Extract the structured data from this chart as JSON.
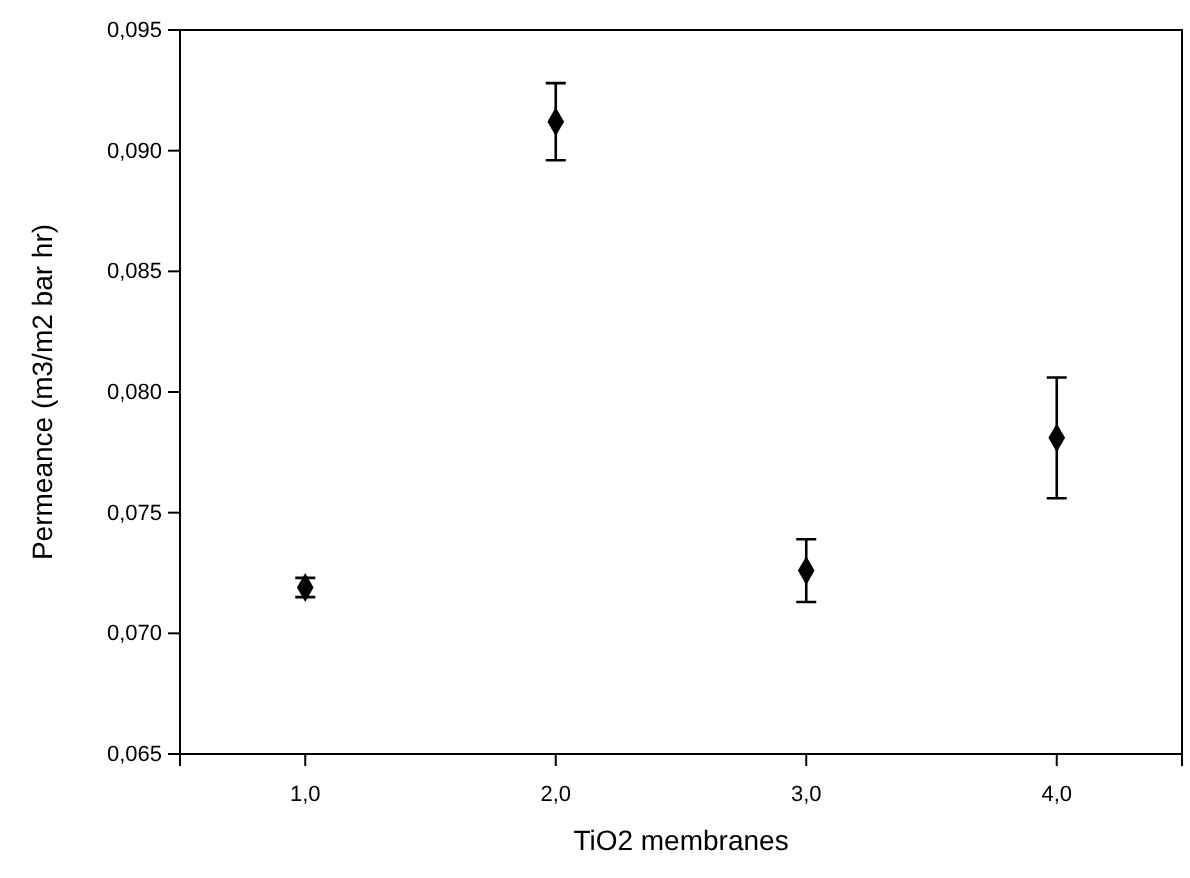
{
  "chart_data": {
    "type": "scatter",
    "xlabel": "TiO2 membranes",
    "ylabel": "Permeance (m3/m2 bar hr)",
    "x": [
      1,
      2,
      3,
      4
    ],
    "values": [
      0.0719,
      0.0912,
      0.0726,
      0.0781
    ],
    "errors": [
      0.0004,
      0.0016,
      0.0013,
      0.0025
    ],
    "color": "#000000",
    "marker": "diamond",
    "xlim": [
      0.5,
      4.5
    ],
    "xticks": [
      {
        "value": 1,
        "label": "1,0"
      },
      {
        "value": 2,
        "label": "2,0"
      },
      {
        "value": 3,
        "label": "3,0"
      },
      {
        "value": 4,
        "label": "4,0"
      }
    ],
    "ylim": [
      0.065,
      0.095
    ],
    "yticks": [
      {
        "value": 0.065,
        "label": "0,065"
      },
      {
        "value": 0.07,
        "label": "0,070"
      },
      {
        "value": 0.075,
        "label": "0,075"
      },
      {
        "value": 0.08,
        "label": "0,080"
      },
      {
        "value": 0.085,
        "label": "0,085"
      },
      {
        "value": 0.09,
        "label": "0,090"
      },
      {
        "value": 0.095,
        "label": "0,095"
      }
    ],
    "grid": false
  }
}
